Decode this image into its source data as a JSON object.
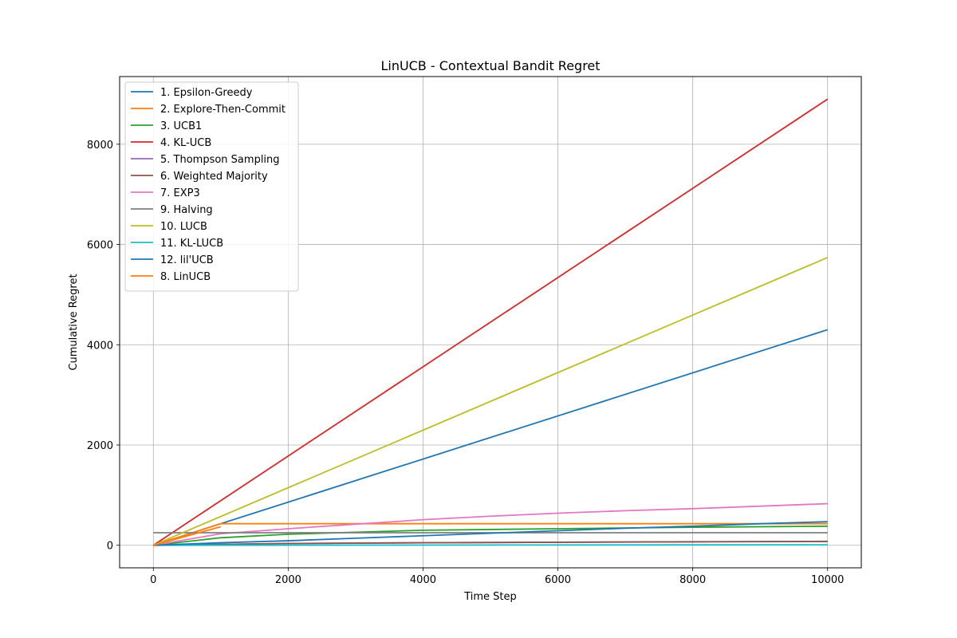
{
  "chart_data": {
    "type": "line",
    "title": "LinUCB - Contextual Bandit Regret",
    "xlabel": "Time Step",
    "ylabel": "Cumulative Regret",
    "xlim": [
      -500,
      10500
    ],
    "ylim": [
      -450,
      9350
    ],
    "xticks": [
      0,
      2000,
      4000,
      6000,
      8000,
      10000
    ],
    "yticks": [
      0,
      2000,
      4000,
      6000,
      8000
    ],
    "grid": true,
    "legend_position": "upper-left",
    "series": [
      {
        "name": "1. Epsilon-Greedy",
        "color": "#1f77b4",
        "x": [
          0,
          10000
        ],
        "y": [
          0,
          4300
        ]
      },
      {
        "name": "2. Explore-Then-Commit",
        "color": "#ff7f0e",
        "x": [
          0,
          1000,
          10000
        ],
        "y": [
          0,
          430,
          430
        ]
      },
      {
        "name": "3. UCB1",
        "color": "#2ca02c",
        "x": [
          0,
          1000,
          2000,
          3000,
          4000,
          6000,
          8000,
          10000
        ],
        "y": [
          0,
          150,
          220,
          260,
          300,
          330,
          360,
          380
        ]
      },
      {
        "name": "4. KL-UCB",
        "color": "#d62728",
        "x": [
          0,
          10000
        ],
        "y": [
          0,
          8900
        ]
      },
      {
        "name": "5. Thompson Sampling",
        "color": "#9467bd",
        "x": [
          0,
          2000,
          4000,
          6000,
          8000,
          10000
        ],
        "y": [
          0,
          35,
          50,
          60,
          68,
          75
        ]
      },
      {
        "name": "6. Weighted Majority",
        "color": "#8c564b",
        "x": [
          0,
          2000,
          4000,
          6000,
          8000,
          10000
        ],
        "y": [
          0,
          35,
          50,
          60,
          70,
          78
        ]
      },
      {
        "name": "7. EXP3",
        "color": "#e377c2",
        "x": [
          0,
          1000,
          2000,
          3000,
          4000,
          5000,
          6000,
          7000,
          8000,
          9000,
          10000
        ],
        "y": [
          0,
          230,
          330,
          420,
          510,
          580,
          640,
          690,
          730,
          780,
          830
        ]
      },
      {
        "name": "9. Halving",
        "color": "#7f7f7f",
        "x": [
          0,
          10000
        ],
        "y": [
          250,
          250
        ]
      },
      {
        "name": "10. LUCB",
        "color": "#bcbd22",
        "x": [
          0,
          10000
        ],
        "y": [
          0,
          5740
        ]
      },
      {
        "name": "11. KL-LUCB",
        "color": "#17becf",
        "x": [
          0,
          10000
        ],
        "y": [
          0,
          10
        ]
      },
      {
        "name": "12. lil'UCB",
        "color": "#1f77b4",
        "x": [
          0,
          1000,
          2000,
          3000,
          4000,
          5000,
          6000,
          7000,
          8000,
          9000,
          10000
        ],
        "y": [
          0,
          50,
          90,
          140,
          190,
          240,
          290,
          340,
          380,
          430,
          470
        ]
      },
      {
        "name": "8. LinUCB",
        "color": "#ff7f0e",
        "x": [
          0,
          1000
        ],
        "y": [
          0,
          370
        ]
      }
    ]
  }
}
